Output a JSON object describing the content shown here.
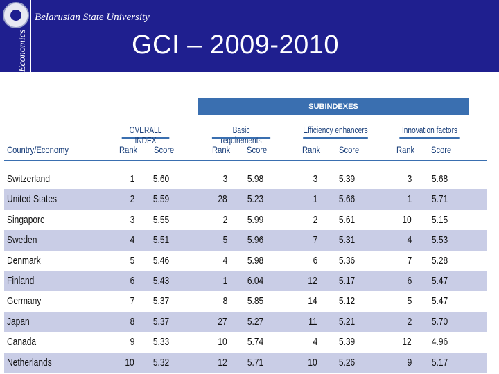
{
  "header": {
    "side_text": "Economics",
    "university": "Belarusian State University",
    "title": "GCI – 2009-2010",
    "background_color": "#1f1f8f"
  },
  "table": {
    "subindexes_label": "SUBINDEXES",
    "groups": [
      "OVERALL INDEX",
      "Basic requirements",
      "Efficiency enhancers",
      "Innovation factors"
    ],
    "country_header": "Country/Economy",
    "rank_label": "Rank",
    "score_label": "Score",
    "rows": [
      {
        "country": "Switzerland",
        "overall_rank": "1",
        "overall_score": "5.60",
        "basic_rank": "3",
        "basic_score": "5.98",
        "eff_rank": "3",
        "eff_score": "5.39",
        "innov_rank": "3",
        "innov_score": "5.68"
      },
      {
        "country": "United States",
        "overall_rank": "2",
        "overall_score": "5.59",
        "basic_rank": "28",
        "basic_score": "5.23",
        "eff_rank": "1",
        "eff_score": "5.66",
        "innov_rank": "1",
        "innov_score": "5.71"
      },
      {
        "country": "Singapore",
        "overall_rank": "3",
        "overall_score": "5.55",
        "basic_rank": "2",
        "basic_score": "5.99",
        "eff_rank": "2",
        "eff_score": "5.61",
        "innov_rank": "10",
        "innov_score": "5.15"
      },
      {
        "country": "Sweden",
        "overall_rank": "4",
        "overall_score": "5.51",
        "basic_rank": "5",
        "basic_score": "5.96",
        "eff_rank": "7",
        "eff_score": "5.31",
        "innov_rank": "4",
        "innov_score": "5.53"
      },
      {
        "country": "Denmark",
        "overall_rank": "5",
        "overall_score": "5.46",
        "basic_rank": "4",
        "basic_score": "5.98",
        "eff_rank": "6",
        "eff_score": "5.36",
        "innov_rank": "7",
        "innov_score": "5.28"
      },
      {
        "country": "Finland",
        "overall_rank": "6",
        "overall_score": "5.43",
        "basic_rank": "1",
        "basic_score": "6.04",
        "eff_rank": "12",
        "eff_score": "5.17",
        "innov_rank": "6",
        "innov_score": "5.47"
      },
      {
        "country": "Germany",
        "overall_rank": "7",
        "overall_score": "5.37",
        "basic_rank": "8",
        "basic_score": "5.85",
        "eff_rank": "14",
        "eff_score": "5.12",
        "innov_rank": "5",
        "innov_score": "5.47"
      },
      {
        "country": "Japan",
        "overall_rank": "8",
        "overall_score": "5.37",
        "basic_rank": "27",
        "basic_score": "5.27",
        "eff_rank": "11",
        "eff_score": "5.21",
        "innov_rank": "2",
        "innov_score": "5.70"
      },
      {
        "country": "Canada",
        "overall_rank": "9",
        "overall_score": "5.33",
        "basic_rank": "10",
        "basic_score": "5.74",
        "eff_rank": "4",
        "eff_score": "5.39",
        "innov_rank": "12",
        "innov_score": "4.96"
      },
      {
        "country": "Netherlands",
        "overall_rank": "10",
        "overall_score": "5.32",
        "basic_rank": "12",
        "basic_score": "5.71",
        "eff_rank": "10",
        "eff_score": "5.26",
        "innov_rank": "9",
        "innov_score": "5.17"
      }
    ],
    "accent_color": "#3a6fb0",
    "alt_row_color": "#c9cde6"
  }
}
